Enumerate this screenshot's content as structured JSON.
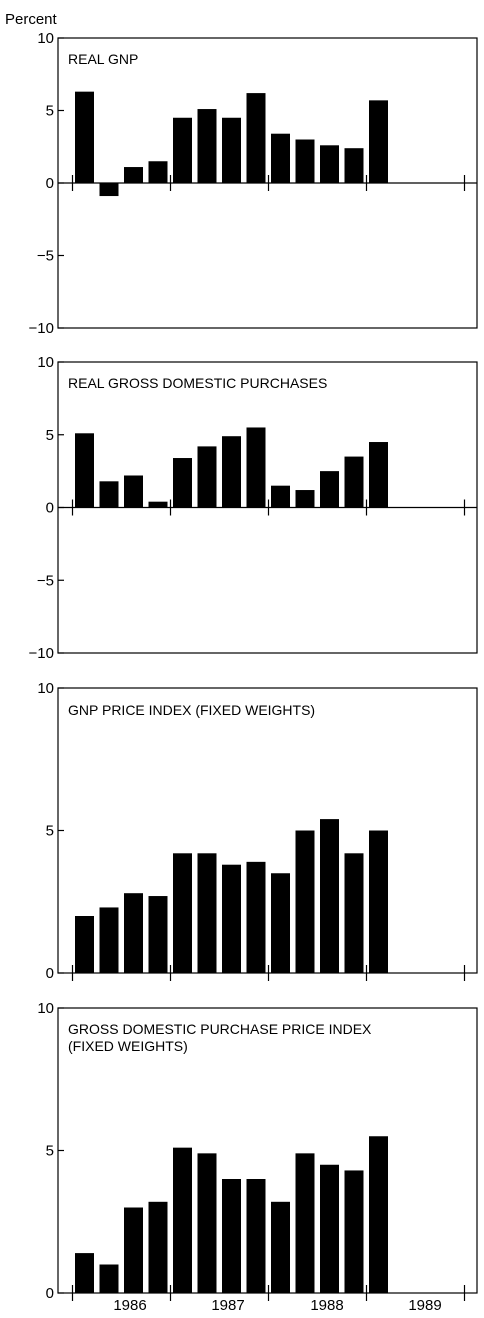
{
  "y_axis_title": "Percent",
  "chart_data": [
    {
      "type": "bar",
      "title": "REAL GNP",
      "ylim": [
        -10,
        10
      ],
      "yticks": [
        10,
        5,
        0,
        -5,
        -10
      ],
      "categories": [
        "1986 Q1",
        "1986 Q2",
        "1986 Q3",
        "1986 Q4",
        "1987 Q1",
        "1987 Q2",
        "1987 Q3",
        "1987 Q4",
        "1988 Q1",
        "1988 Q2",
        "1988 Q3",
        "1988 Q4",
        "1989 Q1"
      ],
      "values": [
        6.3,
        -0.9,
        1.1,
        1.5,
        4.5,
        5.1,
        4.5,
        6.2,
        3.4,
        3.0,
        2.6,
        2.4,
        5.7
      ],
      "bar_color": "#000000"
    },
    {
      "type": "bar",
      "title": "REAL GROSS DOMESTIC PURCHASES",
      "ylim": [
        -10,
        10
      ],
      "yticks": [
        10,
        5,
        0,
        -5,
        -10
      ],
      "categories": [
        "1986 Q1",
        "1986 Q2",
        "1986 Q3",
        "1986 Q4",
        "1987 Q1",
        "1987 Q2",
        "1987 Q3",
        "1987 Q4",
        "1988 Q1",
        "1988 Q2",
        "1988 Q3",
        "1988 Q4",
        "1989 Q1"
      ],
      "values": [
        5.1,
        1.8,
        2.2,
        0.4,
        3.4,
        4.2,
        4.9,
        5.5,
        1.5,
        1.2,
        2.5,
        3.5,
        4.5
      ],
      "bar_color": "#000000"
    },
    {
      "type": "bar",
      "title": "GNP PRICE INDEX (FIXED WEIGHTS)",
      "ylim": [
        0,
        10
      ],
      "yticks": [
        10,
        5,
        0
      ],
      "categories": [
        "1986 Q1",
        "1986 Q2",
        "1986 Q3",
        "1986 Q4",
        "1987 Q1",
        "1987 Q2",
        "1987 Q3",
        "1987 Q4",
        "1988 Q1",
        "1988 Q2",
        "1988 Q3",
        "1988 Q4",
        "1989 Q1"
      ],
      "values": [
        2.0,
        2.3,
        2.8,
        2.7,
        4.2,
        4.2,
        3.8,
        3.9,
        3.5,
        5.0,
        5.4,
        4.2,
        5.0
      ],
      "bar_color": "#000000"
    },
    {
      "type": "bar",
      "title": "GROSS DOMESTIC PURCHASE PRICE INDEX",
      "title_line2": "(FIXED WEIGHTS)",
      "ylim": [
        0,
        10
      ],
      "yticks": [
        10,
        5,
        0
      ],
      "categories": [
        "1986 Q1",
        "1986 Q2",
        "1986 Q3",
        "1986 Q4",
        "1987 Q1",
        "1987 Q2",
        "1987 Q3",
        "1987 Q4",
        "1988 Q1",
        "1988 Q2",
        "1988 Q3",
        "1988 Q4",
        "1989 Q1"
      ],
      "values": [
        1.4,
        1.0,
        3.0,
        3.2,
        5.1,
        4.9,
        4.0,
        4.0,
        3.2,
        4.9,
        4.5,
        4.3,
        5.5
      ],
      "bar_color": "#000000"
    }
  ],
  "x_year_labels": [
    "1986",
    "1987",
    "1988",
    "1989"
  ]
}
